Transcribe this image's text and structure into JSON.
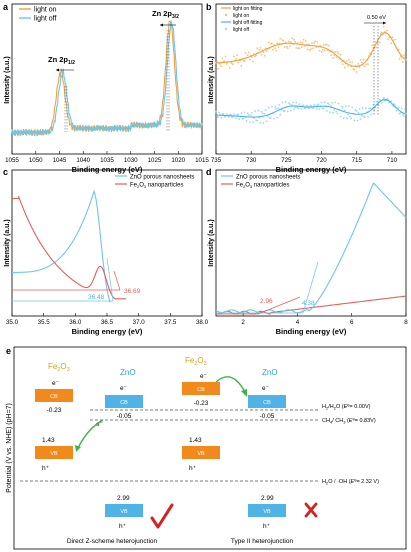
{
  "panels": [
    {
      "letter": "a"
    },
    {
      "letter": "b"
    },
    {
      "letter": "c"
    },
    {
      "letter": "d"
    },
    {
      "letter": "e"
    }
  ],
  "colors": {
    "orange": "#F0A040",
    "blue": "#6EC6E8",
    "red": "#E0605C",
    "cb_orange": "#F08A1C",
    "cb_blue": "#4FB3E6",
    "green": "#3CB34A",
    "check_red": "#D92020",
    "fe_label": "#D4A017",
    "zno_label": "#2AA0D8"
  },
  "chart_data": [
    {
      "panel": "a",
      "type": "line",
      "xlabel": "Binding energy (eV)",
      "ylabel": "Intensity (a.u.)",
      "xlim": [
        1055,
        1015
      ],
      "x_ticks": [
        "1055",
        "1050",
        "1045",
        "1040",
        "1035",
        "1030",
        "1025",
        "1020",
        "1015"
      ],
      "legend": [
        "light on",
        "light off"
      ],
      "legend_position": "top-left",
      "annotations": [
        {
          "text": "Zn 2p",
          "sub": "1/2",
          "x": 1044.8
        },
        {
          "text": "Zn 2p",
          "sub": "3/2",
          "x": 1021.7
        }
      ],
      "series": [
        {
          "name": "light on",
          "peaks": [
            {
              "x": 1044.8,
              "h": 0.56
            },
            {
              "x": 1021.7,
              "h": 1.0
            }
          ]
        },
        {
          "name": "light off",
          "peaks": [
            {
              "x": 1044.4,
              "h": 0.55
            },
            {
              "x": 1021.4,
              "h": 0.98
            }
          ]
        }
      ]
    },
    {
      "panel": "b",
      "type": "scatter",
      "xlabel": "Binding energy (eV)",
      "ylabel": "Intensity (a.u.)",
      "xlim": [
        735,
        708
      ],
      "x_ticks": [
        "735",
        "730",
        "725",
        "720",
        "715",
        "710"
      ],
      "legend": [
        "light on fitting",
        "light on",
        "light off fitting",
        "light off"
      ],
      "legend_position": "top-left",
      "annotations": [
        {
          "text": "0.50 eV",
          "x1": 711.3,
          "x2": 710.8
        }
      ]
    },
    {
      "panel": "c",
      "type": "line",
      "xlabel": "Binding energy (eV)",
      "ylabel": "Intensity (a.u.)",
      "xlim": [
        35.0,
        38.0
      ],
      "x_ticks": [
        "35.0",
        "35.5",
        "36.0",
        "36.5",
        "37.0",
        "37.5",
        "38.0"
      ],
      "legend": [
        "ZnO porous nanosheets",
        "Fe2O3 nanoparticles"
      ],
      "legend_position": "top-right",
      "annotations": [
        {
          "text": "36.48",
          "x": 36.48
        },
        {
          "text": "36.69",
          "x": 36.69
        }
      ]
    },
    {
      "panel": "d",
      "type": "line",
      "xlabel": "Binding energy (eV)",
      "ylabel": "Intensity (a.u.)",
      "xlim": [
        1,
        8
      ],
      "x_ticks": [
        "2",
        "4",
        "6",
        "8"
      ],
      "legend": [
        "ZnO porous nanosheets",
        "Fe2O3 nanoparticles"
      ],
      "legend_position": "top-left",
      "annotations": [
        {
          "text": "2.96",
          "x": 2.96
        },
        {
          "text": "4.38",
          "x": 4.38
        }
      ]
    },
    {
      "panel": "e",
      "type": "diagram",
      "ylabel": "Potential (V vs. NHE) (pH=7)",
      "levels": [
        {
          "text": "H2/H2O (E°= 0.00V)",
          "v": 0.0
        },
        {
          "text": "CH4/CH3 (E°= 0.83V)",
          "v": 0.83
        },
        {
          "text": "H2O/·OH (E°= 2.32 V)",
          "v": 2.32
        }
      ],
      "schemes": [
        {
          "caption": "Direct Z-scheme heterojunction",
          "mark": "check",
          "fe2o3": {
            "label": "Fe2O3",
            "cb": -0.23,
            "vb": 1.43,
            "e": "e⁻",
            "h": "h⁺"
          },
          "zno": {
            "label": "ZnO",
            "cb": -0.05,
            "vb": 2.99,
            "e": "e⁻",
            "h": "h⁺"
          }
        },
        {
          "caption": "Type II heterojunction",
          "mark": "cross",
          "fe2o3": {
            "label": "Fe2O3",
            "cb": -0.23,
            "vb": 1.43,
            "e": "e⁻",
            "h": "h⁺"
          },
          "zno": {
            "label": "ZnO",
            "cb": -0.05,
            "vb": 2.99,
            "e": "e⁻",
            "h": "h⁺"
          }
        }
      ]
    }
  ],
  "strings": {
    "cb": "CB",
    "vb": "VB",
    "e_minus": "e⁻",
    "h_plus": "h⁺",
    "zno_porous": "ZnO porous nanosheets",
    "fe2o3_np_pre": "Fe",
    "fe2o3_np_mid": "O",
    "fe2o3_np_post": " nanoparticles",
    "val_m023": "-0.23",
    "val_m005": "-0.05",
    "val_143": "1.43",
    "val_299": "2.99"
  }
}
